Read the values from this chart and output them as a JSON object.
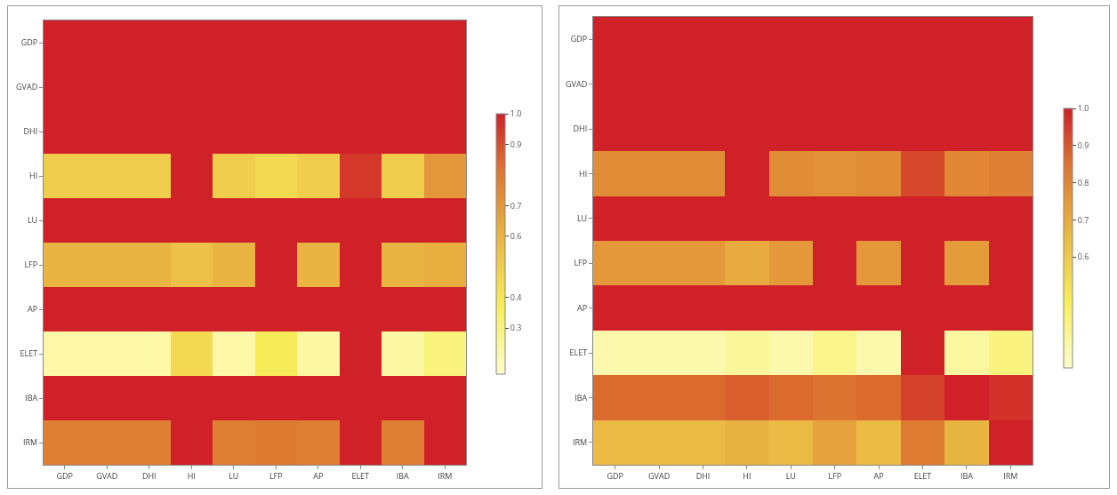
{
  "chart_data": [
    {
      "type": "heatmap",
      "categories": [
        "GDP",
        "GVAD",
        "DHI",
        "HI",
        "LU",
        "LFP",
        "AP",
        "ELET",
        "IBA",
        "IRM"
      ],
      "y_categories": [
        "GDP",
        "GVAD",
        "DHI",
        "HI",
        "LU",
        "LFP",
        "AP",
        "ELET",
        "IBA",
        "IRM"
      ],
      "cells": [
        [
          1,
          1,
          1,
          1,
          1,
          1,
          1,
          1,
          1,
          1
        ],
        [
          1,
          1,
          1,
          1,
          1,
          1,
          1,
          1,
          1,
          1
        ],
        [
          1,
          1,
          1,
          1,
          1,
          1,
          1,
          1,
          1,
          1
        ],
        [
          0.5,
          0.5,
          0.5,
          1,
          0.5,
          0.45,
          0.5,
          0.95,
          0.5,
          0.7
        ],
        [
          1,
          1,
          1,
          1,
          1,
          1,
          1,
          1,
          1,
          1
        ],
        [
          0.6,
          0.6,
          0.6,
          0.55,
          0.6,
          1,
          0.6,
          1,
          0.6,
          0.62
        ],
        [
          1,
          1,
          1,
          1,
          1,
          1,
          1,
          1,
          1,
          1
        ],
        [
          0.22,
          0.22,
          0.22,
          0.45,
          0.22,
          0.38,
          0.23,
          1,
          0.23,
          0.3
        ],
        [
          1,
          1,
          1,
          1,
          1,
          1,
          1,
          1,
          1,
          1
        ],
        [
          0.78,
          0.78,
          0.78,
          1,
          0.78,
          0.8,
          0.78,
          1,
          0.78,
          1
        ]
      ],
      "clim": [
        0.15,
        1
      ],
      "cticks": [
        0.3,
        0.4,
        0.6,
        0.7,
        0.9,
        {
          "value": 1,
          "label": "1.0"
        }
      ]
    },
    {
      "type": "heatmap",
      "categories": [
        "GDP",
        "GVAD",
        "DHI",
        "HI",
        "LU",
        "LFP",
        "AP",
        "ELET",
        "IBA",
        "IRM"
      ],
      "y_categories": [
        "GDP",
        "GVAD",
        "DHI",
        "HI",
        "LU",
        "LFP",
        "AP",
        "ELET",
        "IBA",
        "IRM"
      ],
      "cells": [
        [
          1,
          1,
          1,
          1,
          1,
          1,
          1,
          1,
          1,
          1
        ],
        [
          1,
          1,
          1,
          1,
          1,
          1,
          1,
          1,
          1,
          1
        ],
        [
          1,
          1,
          1,
          1,
          1,
          1,
          1,
          1,
          1,
          1
        ],
        [
          0.78,
          0.78,
          0.78,
          1,
          0.78,
          0.77,
          0.78,
          0.93,
          0.8,
          0.82
        ],
        [
          1,
          1,
          1,
          1,
          1,
          1,
          1,
          1,
          1,
          1
        ],
        [
          0.75,
          0.75,
          0.75,
          0.7,
          0.75,
          1,
          0.75,
          1,
          0.74,
          1
        ],
        [
          1,
          1,
          1,
          1,
          1,
          1,
          1,
          1,
          1,
          1
        ],
        [
          0.35,
          0.35,
          0.35,
          0.38,
          0.35,
          0.4,
          0.35,
          1,
          0.37,
          0.42
        ],
        [
          0.87,
          0.87,
          0.87,
          0.89,
          0.87,
          0.85,
          0.87,
          0.94,
          1,
          0.97
        ],
        [
          0.65,
          0.65,
          0.65,
          0.68,
          0.65,
          0.72,
          0.65,
          0.83,
          0.67,
          1
        ]
      ],
      "clim": [
        0.3,
        1
      ],
      "cticks": [
        0.6,
        0.7,
        0.8,
        0.9,
        {
          "value": 1,
          "label": "1.0"
        }
      ]
    }
  ]
}
